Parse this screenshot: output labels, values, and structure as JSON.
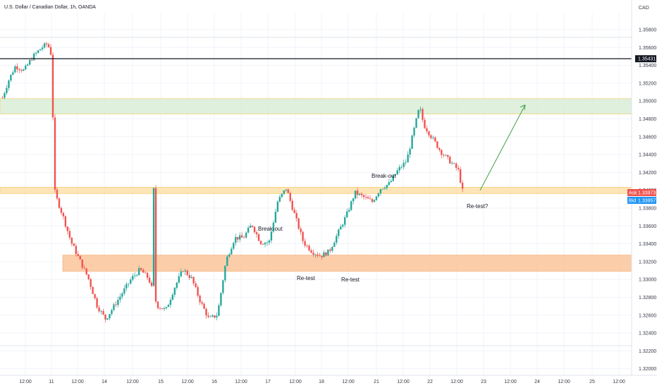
{
  "header": {
    "title": "U.S. Dollar / Canadian Dollar, 1h, OANDA"
  },
  "chart_data": {
    "type": "candlestick",
    "symbol": "U.S. Dollar / Canadian Dollar, 1h, OANDA",
    "currency": "CAD",
    "y_ticks": [
      "1.35800",
      "1.35600",
      "1.35400",
      "1.35200",
      "1.35000",
      "1.34800",
      "1.34600",
      "1.34400",
      "1.34200",
      "1.34000",
      "1.33800",
      "1.33600",
      "1.33400",
      "1.33200",
      "1.33000",
      "1.32800",
      "1.32600",
      "1.32400",
      "1.32200",
      "1.32000"
    ],
    "x_ticks": [
      "12:00",
      "11",
      "12:00",
      "14",
      "12:00",
      "15",
      "12:00",
      "16",
      "12:00",
      "17",
      "12:00",
      "18",
      "12:00",
      "21",
      "12:00",
      "22",
      "12:00",
      "23",
      "12:00",
      "24",
      "12:00",
      "25",
      "12:00"
    ],
    "ylim": [
      1.3193,
      1.3594
    ],
    "resistance_line": {
      "price": 1.35431,
      "label": "1.35431"
    },
    "ask": {
      "tag": "Ask",
      "price": "1.33973"
    },
    "bid": {
      "tag": "Bid",
      "price": "1.33957"
    },
    "zones": [
      {
        "name": "target-zone",
        "price_low": 1.3482,
        "price_high": 1.3499,
        "color": "#dcefd9"
      },
      {
        "name": "breakout-zone",
        "price_low": 1.3394,
        "price_high": 1.3401,
        "color": "#fde3b0"
      },
      {
        "name": "demand-zone",
        "price_low": 1.3308,
        "price_high": 1.3326,
        "color": "#fbc8a0"
      }
    ],
    "annotations": [
      {
        "text": "Break-out",
        "x_date": "17 08:00",
        "price": 1.3368
      },
      {
        "text": "Re-test",
        "x_date": "17 18:00",
        "price": 1.3306
      },
      {
        "text": "Re-test",
        "x_date": "18 14:00",
        "price": 1.3304
      },
      {
        "text": "Break-out",
        "x_date": "20 20:00",
        "price": 1.3417
      },
      {
        "text": "Re-test?",
        "x_date": "22 16:00",
        "price": 1.3382
      }
    ],
    "projection_arrow": {
      "from_price": 1.33975,
      "to_price": 1.3492
    },
    "grid": true,
    "up_color": "#26a69a",
    "down_color": "#ef5350",
    "key_path": [
      [
        0,
        1.35
      ],
      [
        3,
        1.352
      ],
      [
        6,
        1.3535
      ],
      [
        10,
        1.353
      ],
      [
        14,
        1.3545
      ],
      [
        18,
        1.3555
      ],
      [
        21,
        1.356
      ],
      [
        23,
        1.3545
      ],
      [
        24,
        1.34
      ],
      [
        25,
        1.339
      ],
      [
        28,
        1.337
      ],
      [
        32,
        1.334
      ],
      [
        36,
        1.332
      ],
      [
        40,
        1.33
      ],
      [
        44,
        1.327
      ],
      [
        48,
        1.3255
      ],
      [
        52,
        1.327
      ],
      [
        56,
        1.3285
      ],
      [
        60,
        1.33
      ],
      [
        64,
        1.331
      ],
      [
        68,
        1.33
      ],
      [
        72,
        1.327
      ],
      [
        76,
        1.3265
      ],
      [
        80,
        1.329
      ],
      [
        84,
        1.331
      ],
      [
        88,
        1.33
      ],
      [
        92,
        1.3275
      ],
      [
        96,
        1.3255
      ],
      [
        100,
        1.326
      ],
      [
        104,
        1.332
      ],
      [
        108,
        1.3345
      ],
      [
        112,
        1.3345
      ],
      [
        116,
        1.336
      ],
      [
        120,
        1.334
      ],
      [
        124,
        1.334
      ],
      [
        128,
        1.3385
      ],
      [
        132,
        1.34
      ],
      [
        136,
        1.337
      ],
      [
        140,
        1.334
      ],
      [
        144,
        1.333
      ],
      [
        148,
        1.3325
      ],
      [
        152,
        1.333
      ],
      [
        156,
        1.335
      ],
      [
        160,
        1.337
      ],
      [
        164,
        1.3395
      ],
      [
        168,
        1.339
      ],
      [
        172,
        1.3385
      ],
      [
        176,
        1.34
      ],
      [
        180,
        1.3405
      ],
      [
        184,
        1.342
      ],
      [
        188,
        1.343
      ],
      [
        192,
        1.347
      ],
      [
        194,
        1.349
      ],
      [
        196,
        1.347
      ],
      [
        200,
        1.3455
      ],
      [
        204,
        1.344
      ],
      [
        208,
        1.343
      ],
      [
        212,
        1.342
      ],
      [
        214,
        1.3397
      ]
    ]
  }
}
